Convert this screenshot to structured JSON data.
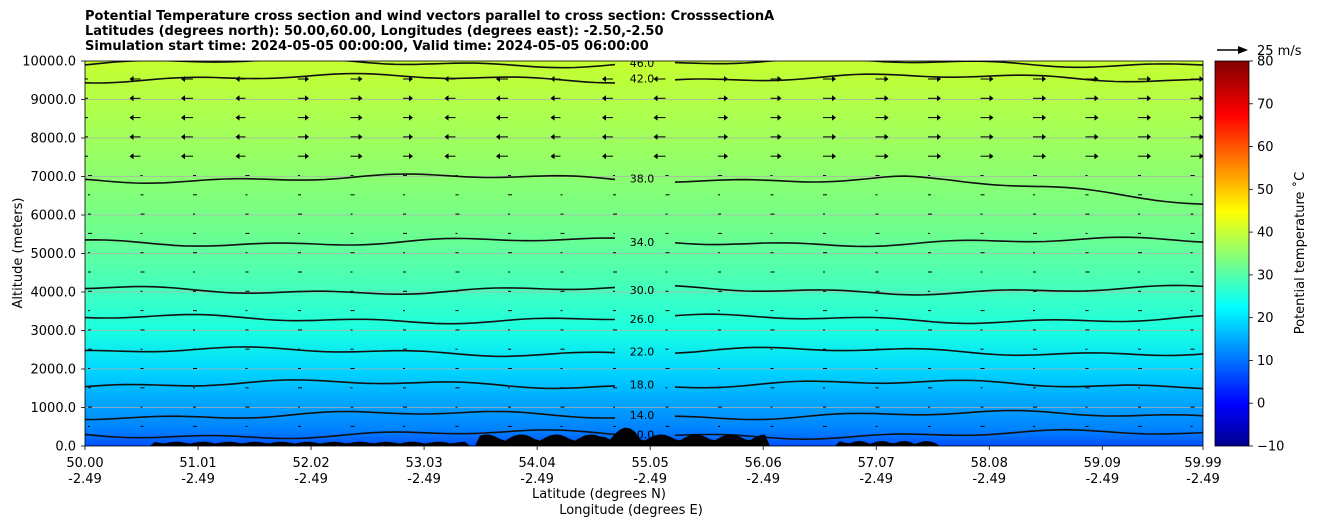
{
  "titles": [
    "Potential Temperature cross section and wind vectors parallel to cross section: CrosssectionA",
    "Latitudes (degrees north): 50.00,60.00, Longitudes (degrees east): -2.50,-2.50",
    "Simulation start time: 2024-05-05 00:00:00, Valid time: 2024-05-05 06:00:00"
  ],
  "chart_data": {
    "type": "heatmap",
    "subtype": "filled contour cross section with contour lines and wind vectors",
    "ylabel": "Altitude (meters)",
    "xlabel": "Latitude (degrees N)",
    "xlabel2": "Longitude (degrees E)",
    "xlim": [
      50.0,
      59.99
    ],
    "ylim": [
      0,
      10000
    ],
    "grid": "horizontal",
    "y_ticks": [
      "0.0",
      "1000.0",
      "2000.0",
      "3000.0",
      "4000.0",
      "5000.0",
      "6000.0",
      "7000.0",
      "8000.0",
      "9000.0",
      "10000.0"
    ],
    "x_ticks": [
      {
        "lat": "50.00",
        "lon": "-2.49"
      },
      {
        "lat": "51.01",
        "lon": "-2.49"
      },
      {
        "lat": "52.02",
        "lon": "-2.49"
      },
      {
        "lat": "53.03",
        "lon": "-2.49"
      },
      {
        "lat": "54.04",
        "lon": "-2.49"
      },
      {
        "lat": "55.05",
        "lon": "-2.49"
      },
      {
        "lat": "56.06",
        "lon": "-2.49"
      },
      {
        "lat": "57.07",
        "lon": "-2.49"
      },
      {
        "lat": "58.08",
        "lon": "-2.49"
      },
      {
        "lat": "59.09",
        "lon": "-2.49"
      },
      {
        "lat": "59.99",
        "lon": "-2.49"
      }
    ],
    "colorbar": {
      "label": "Potential temperature ˚C",
      "range": [
        -10,
        80
      ],
      "ticks": [
        "−10",
        "0",
        "10",
        "20",
        "30",
        "40",
        "50",
        "60",
        "70",
        "80"
      ],
      "colormap": "jet"
    },
    "quiver_key": {
      "label": "25 m/s"
    },
    "contours": [
      {
        "level": 10.0,
        "label": "10.0",
        "y": 300
      },
      {
        "level": 14.0,
        "label": "14.0",
        "y": 800
      },
      {
        "level": 18.0,
        "label": "18.0",
        "y": 1600
      },
      {
        "level": 22.0,
        "label": "22.0",
        "y": 2450
      },
      {
        "level": 26.0,
        "label": "26.0",
        "y": 3300
      },
      {
        "level": 30.0,
        "label": "30.0",
        "y": 4050
      },
      {
        "level": 34.0,
        "label": "34.0",
        "y": 5300
      },
      {
        "level": 38.0,
        "label": "38.0",
        "y": 6950
      },
      {
        "level": 42.0,
        "label": "42.0",
        "y": 9550
      },
      {
        "level": 46.0,
        "label": "46.0",
        "y": 9950
      }
    ],
    "terrain_max_m": 600,
    "colors": {
      "terrain": "#000000",
      "contour": "#111111",
      "grid": "#b0b0b0"
    }
  }
}
